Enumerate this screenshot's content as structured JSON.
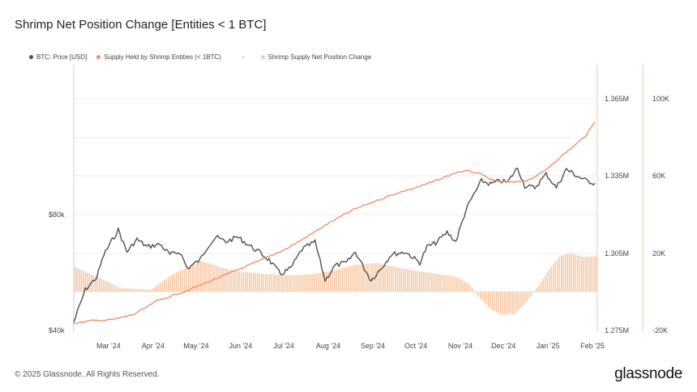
{
  "title": "Shrimp Net Position Change [Entities < 1 BTC]",
  "footer": "© 2025 Glassnode. All Rights Reserved.",
  "brand": "glassnode",
  "colors": {
    "price": "#505050",
    "supply": "#ef8e6c",
    "net": "#f6c9a6"
  },
  "legend": [
    {
      "name": "BTC: Price [USD]",
      "color": "#505050"
    },
    {
      "name": "Supply Held by Shrimp Entities (< 1BTC)",
      "color": "#ef8e6c"
    },
    {
      "name": "-",
      "color": ""
    },
    {
      "name": "Shrimp Supply Net Position Change",
      "color": "#f6c9a6"
    }
  ],
  "chart_data": {
    "type": "line",
    "x_ticks": [
      "Mar '24",
      "Apr '24",
      "May '24",
      "Jun '24",
      "Jul '24",
      "Aug '24",
      "Sep '24",
      "Oct '24",
      "Nov '24",
      "Dec '24",
      "Jan '25",
      "Feb '25"
    ],
    "left_axis": {
      "ticks": [
        "$40k",
        "$80k"
      ],
      "scale": "log"
    },
    "mid_axis": {
      "ticks": [
        "1.365M",
        "1.335M",
        "1.305M",
        "1.275M"
      ],
      "range": [
        1.275,
        1.365
      ]
    },
    "right_axis": {
      "ticks": [
        "100K",
        "60K",
        "20K",
        "-20K"
      ],
      "range": [
        -20000,
        100000
      ]
    },
    "series": [
      {
        "name": "BTC: Price [USD]",
        "axis": "left",
        "x": [
          "2024-02-12",
          "2024-02-20",
          "2024-02-28",
          "2024-03-04",
          "2024-03-11",
          "2024-03-14",
          "2024-03-20",
          "2024-03-27",
          "2024-04-03",
          "2024-04-12",
          "2024-04-19",
          "2024-04-26",
          "2024-05-01",
          "2024-05-10",
          "2024-05-15",
          "2024-05-21",
          "2024-05-28",
          "2024-06-05",
          "2024-06-12",
          "2024-06-20",
          "2024-06-27",
          "2024-07-05",
          "2024-07-12",
          "2024-07-20",
          "2024-07-29",
          "2024-08-05",
          "2024-08-12",
          "2024-08-20",
          "2024-08-26",
          "2024-09-06",
          "2024-09-13",
          "2024-09-20",
          "2024-09-30",
          "2024-10-10",
          "2024-10-15",
          "2024-10-21",
          "2024-10-29",
          "2024-11-04",
          "2024-11-11",
          "2024-11-15",
          "2024-11-22",
          "2024-11-28",
          "2024-12-05",
          "2024-12-10",
          "2024-12-17",
          "2024-12-22",
          "2024-12-29",
          "2025-01-06",
          "2025-01-13",
          "2025-01-20",
          "2025-01-27",
          "2025-02-03",
          "2025-02-09"
        ],
        "y": [
          42000,
          51000,
          55000,
          63000,
          70000,
          73000,
          64000,
          69000,
          66000,
          67000,
          63000,
          64000,
          58000,
          61000,
          66000,
          70000,
          68000,
          70000,
          67000,
          64000,
          61000,
          56000,
          58000,
          65000,
          68000,
          54000,
          59000,
          60000,
          64000,
          54000,
          58000,
          63000,
          64000,
          60000,
          66000,
          67500,
          72000,
          68000,
          82000,
          88000,
          98000,
          96000,
          98000,
          97000,
          106000,
          95000,
          94000,
          102000,
          94000,
          105000,
          101000,
          98000,
          96500
        ]
      },
      {
        "name": "Supply Held by Shrimp Entities (< 1BTC)",
        "axis": "mid",
        "x": [
          "2024-02-12",
          "2024-02-25",
          "2024-03-10",
          "2024-03-25",
          "2024-04-10",
          "2024-05-01",
          "2024-05-25",
          "2024-06-20",
          "2024-07-10",
          "2024-07-25",
          "2024-08-10",
          "2024-08-25",
          "2024-09-10",
          "2024-09-25",
          "2024-10-10",
          "2024-10-25",
          "2024-11-05",
          "2024-11-13",
          "2024-11-20",
          "2024-12-01",
          "2024-12-15",
          "2024-12-25",
          "2025-01-05",
          "2025-01-15",
          "2025-01-25",
          "2025-02-03",
          "2025-02-09"
        ],
        "y": [
          1.2777,
          1.2788,
          1.2792,
          1.2812,
          1.2865,
          1.2905,
          1.296,
          1.302,
          1.307,
          1.312,
          1.3175,
          1.322,
          1.3255,
          1.3285,
          1.331,
          1.334,
          1.3365,
          1.337,
          1.336,
          1.333,
          1.3325,
          1.3335,
          1.337,
          1.342,
          1.3465,
          1.351,
          1.356
        ]
      },
      {
        "name": "Shrimp Supply Net Position Change",
        "axis": "right",
        "type": "bar",
        "x": [
          "2024-02-12",
          "2024-03-01",
          "2024-03-15",
          "2024-04-05",
          "2024-04-20",
          "2024-05-10",
          "2024-06-01",
          "2024-06-20",
          "2024-07-10",
          "2024-07-25",
          "2024-08-10",
          "2024-08-25",
          "2024-09-10",
          "2024-09-25",
          "2024-10-10",
          "2024-10-25",
          "2024-11-05",
          "2024-11-13",
          "2024-11-20",
          "2024-11-28",
          "2024-12-06",
          "2024-12-15",
          "2024-12-22",
          "2024-12-30",
          "2025-01-08",
          "2025-01-15",
          "2025-01-22",
          "2025-02-01",
          "2025-02-09"
        ],
        "y": [
          13000,
          7000,
          2000,
          1000,
          9000,
          16000,
          11000,
          9500,
          8500,
          9000,
          11000,
          14000,
          15000,
          12500,
          10500,
          9000,
          7500,
          4000,
          -3000,
          -9000,
          -12000,
          -11500,
          -6000,
          2000,
          12000,
          18500,
          20000,
          18000,
          18500
        ]
      }
    ],
    "grid": true,
    "legend_position": "top-left"
  }
}
